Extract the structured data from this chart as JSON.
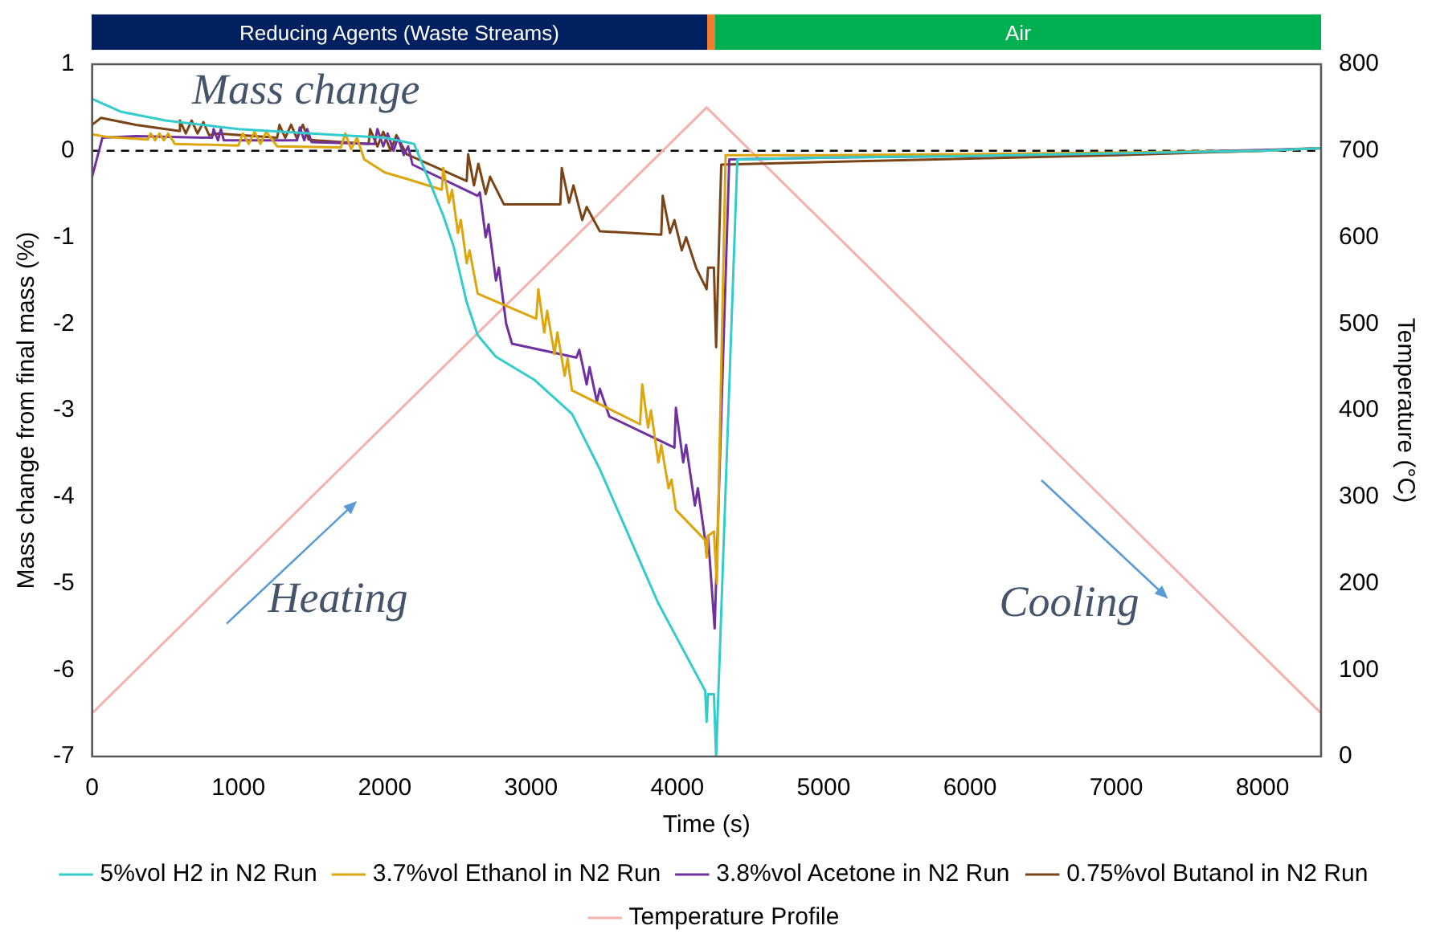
{
  "chart_data": {
    "type": "line",
    "xlabel": "Time (s)",
    "ylabel": "Mass change from final mass (%)",
    "y2label": "Temperature (°C)",
    "xlim": [
      0,
      8400
    ],
    "xticks": [
      0,
      1000,
      2000,
      3000,
      4000,
      5000,
      6000,
      7000,
      8000
    ],
    "ylim": [
      -7,
      1
    ],
    "yticks": [
      -7,
      -6,
      -5,
      -4,
      -3,
      -2,
      -1,
      0,
      1
    ],
    "y2lim": [
      0,
      800
    ],
    "y2ticks": [
      0,
      100,
      200,
      300,
      400,
      500,
      600,
      700,
      800
    ],
    "grid": false,
    "legend": "bottom",
    "marker": "none",
    "line_style": "solid",
    "annotations": [
      "Mass change",
      "Heating",
      "Cooling",
      "Reducing Agents (Waste Streams)",
      "Air"
    ],
    "ref_lines": [
      {
        "axis": "y",
        "value": 0,
        "color": "#000000",
        "line_style": "dashed"
      }
    ],
    "series": [
      {
        "name": "5%vol H2 in N2 Run",
        "color": "#33cccc",
        "x": [
          0,
          200,
          500,
          1000,
          1500,
          2000,
          2200,
          2300,
          2400,
          2470,
          2560,
          2635,
          2760,
          3025,
          3280,
          3470,
          3870,
          4190,
          4200,
          4210,
          4250,
          4265,
          4410,
          5000,
          6000,
          7000,
          8000,
          8400
        ],
        "values": [
          0.6,
          0.45,
          0.35,
          0.25,
          0.2,
          0.15,
          0.08,
          -0.33,
          -0.75,
          -1.1,
          -1.75,
          -2.13,
          -2.38,
          -2.65,
          -3.04,
          -3.68,
          -5.23,
          -6.24,
          -6.6,
          -6.28,
          -6.28,
          -7,
          -0.1,
          -0.08,
          -0.06,
          -0.03,
          0,
          0.03
        ]
      },
      {
        "name": "3.7%vol Ethanol in N2 Run",
        "color": "#dca60c",
        "x": [
          0,
          100,
          380,
          400,
          430,
          460,
          490,
          520,
          565,
          1000,
          1030,
          1070,
          1110,
          1150,
          1190,
          1265,
          1700,
          1730,
          1770,
          1810,
          1860,
          2000,
          2200,
          2390,
          2400,
          2440,
          2460,
          2500,
          2520,
          2560,
          2580,
          2635,
          3035,
          3050,
          3090,
          3110,
          3160,
          3180,
          3230,
          3250,
          3280,
          3745,
          3760,
          3800,
          3820,
          3870,
          3890,
          3940,
          3960,
          3990,
          4190,
          4200,
          4210,
          4250,
          4270,
          4330,
          5000,
          6000,
          7000,
          8000,
          8400
        ],
        "values": [
          0.19,
          0.16,
          0.13,
          0.2,
          0.12,
          0.2,
          0.12,
          0.2,
          0.08,
          0.06,
          0.2,
          0.08,
          0.22,
          0.08,
          0.22,
          0.05,
          0.04,
          0.2,
          0.02,
          0.15,
          -0.1,
          -0.25,
          -0.35,
          -0.45,
          -0.2,
          -0.6,
          -0.45,
          -0.95,
          -0.8,
          -1.3,
          -1.15,
          -1.65,
          -1.94,
          -1.6,
          -2.1,
          -1.85,
          -2.35,
          -2.1,
          -2.6,
          -2.4,
          -2.77,
          -3.16,
          -2.7,
          -3.2,
          -3,
          -3.6,
          -3.4,
          -3.9,
          -3.8,
          -4.15,
          -4.5,
          -4.7,
          -4.45,
          -4.4,
          -5,
          -0.05,
          -0.05,
          -0.04,
          -0.02,
          0,
          0.03
        ]
      },
      {
        "name": "3.8%vol Acetone in N2 Run",
        "color": "#7030a0",
        "x": [
          0,
          70,
          300,
          820,
          830,
          860,
          880,
          900,
          1400,
          1420,
          1450,
          1470,
          1500,
          1930,
          1950,
          1990,
          2020,
          2060,
          2090,
          2130,
          2160,
          2190,
          2635,
          2650,
          2690,
          2710,
          2760,
          2780,
          2830,
          2870,
          3310,
          3330,
          3380,
          3400,
          3450,
          3470,
          3535,
          3980,
          3990,
          4040,
          4060,
          4120,
          4140,
          4190,
          4200,
          4210,
          4255,
          4355,
          5000,
          6000,
          7000,
          8000,
          8400
        ],
        "values": [
          -0.3,
          0.15,
          0.17,
          0.15,
          0.25,
          0.12,
          0.25,
          0.12,
          0.12,
          0.27,
          0.12,
          0.25,
          0.1,
          0.08,
          0.25,
          0.05,
          0.2,
          0,
          0.15,
          -0.05,
          0.05,
          -0.16,
          -0.52,
          -0.48,
          -1,
          -0.85,
          -1.5,
          -1.35,
          -2,
          -2.23,
          -2.39,
          -2.3,
          -2.7,
          -2.5,
          -2.9,
          -2.75,
          -3.07,
          -3.43,
          -2.97,
          -3.6,
          -3.4,
          -4.1,
          -3.9,
          -4.5,
          -4.65,
          -4.45,
          -5.52,
          -0.1,
          -0.08,
          -0.06,
          -0.03,
          0.01,
          0.03
        ]
      },
      {
        "name": "0.75%vol Butanol in N2 Run",
        "color": "#7b4416",
        "x": [
          0,
          60,
          300,
          590,
          600,
          640,
          680,
          720,
          760,
          800,
          860,
          1265,
          1280,
          1320,
          1360,
          1400,
          1440,
          1480,
          1530,
          1890,
          1900,
          1950,
          1990,
          2040,
          2080,
          2150,
          2560,
          2570,
          2610,
          2640,
          2690,
          2720,
          2815,
          3200,
          3210,
          3260,
          3290,
          3350,
          3380,
          3470,
          3890,
          3900,
          3950,
          3980,
          4030,
          4060,
          4130,
          4200,
          4210,
          4250,
          4265,
          4300,
          5000,
          6000,
          7000,
          8000,
          8400
        ],
        "values": [
          0.3,
          0.38,
          0.3,
          0.23,
          0.35,
          0.2,
          0.35,
          0.2,
          0.33,
          0.18,
          0.2,
          0.15,
          0.3,
          0.15,
          0.3,
          0.14,
          0.3,
          0.13,
          0.12,
          0.08,
          0.25,
          0.05,
          0.22,
          0,
          0.18,
          -0.04,
          -0.35,
          -0.04,
          -0.4,
          -0.15,
          -0.5,
          -0.3,
          -0.62,
          -0.62,
          -0.2,
          -0.6,
          -0.4,
          -0.8,
          -0.65,
          -0.93,
          -0.97,
          -0.52,
          -0.95,
          -0.8,
          -1.15,
          -1,
          -1.36,
          -1.6,
          -1.35,
          -1.35,
          -2.27,
          -0.16,
          -0.13,
          -0.09,
          -0.05,
          0,
          0.03
        ]
      },
      {
        "name": "Temperature Profile",
        "color": "#f4b1ae",
        "axis": "y2",
        "x": [
          0,
          4200,
          8400
        ],
        "values": [
          50,
          750,
          50
        ]
      }
    ]
  }
}
